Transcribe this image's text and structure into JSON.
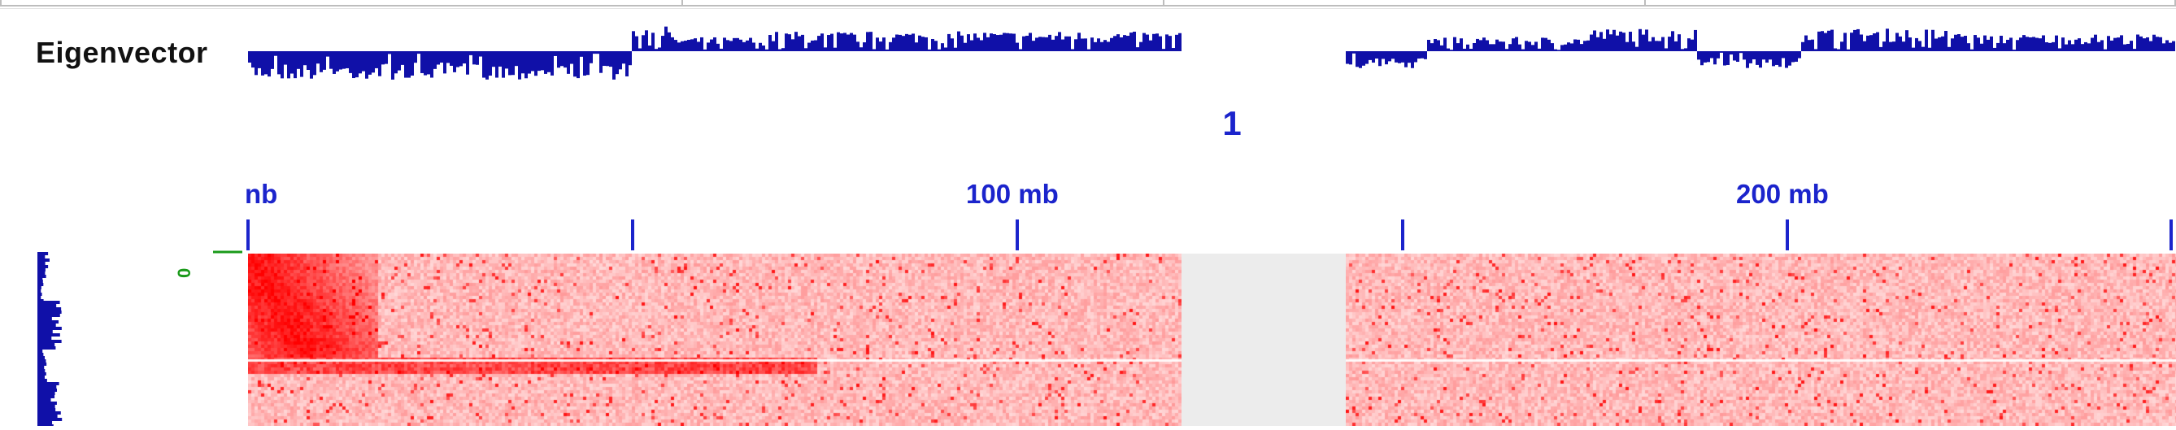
{
  "track": {
    "name": "Eigenvector",
    "color": "#1010a8"
  },
  "chromosome": {
    "label": "1"
  },
  "ruler": {
    "ticks": [
      {
        "label": "nb"
      },
      {
        "label": ""
      },
      {
        "label": "100 mb"
      },
      {
        "label": ""
      },
      {
        "label": "200 mb"
      },
      {
        "label": ""
      }
    ],
    "color": "#1b24cc"
  },
  "left_marker": {
    "label": "0",
    "color": "#1a9a1a"
  },
  "heatmap": {
    "color": "#ff0000",
    "background": "#ffffff",
    "gap_color": "#ececec"
  }
}
